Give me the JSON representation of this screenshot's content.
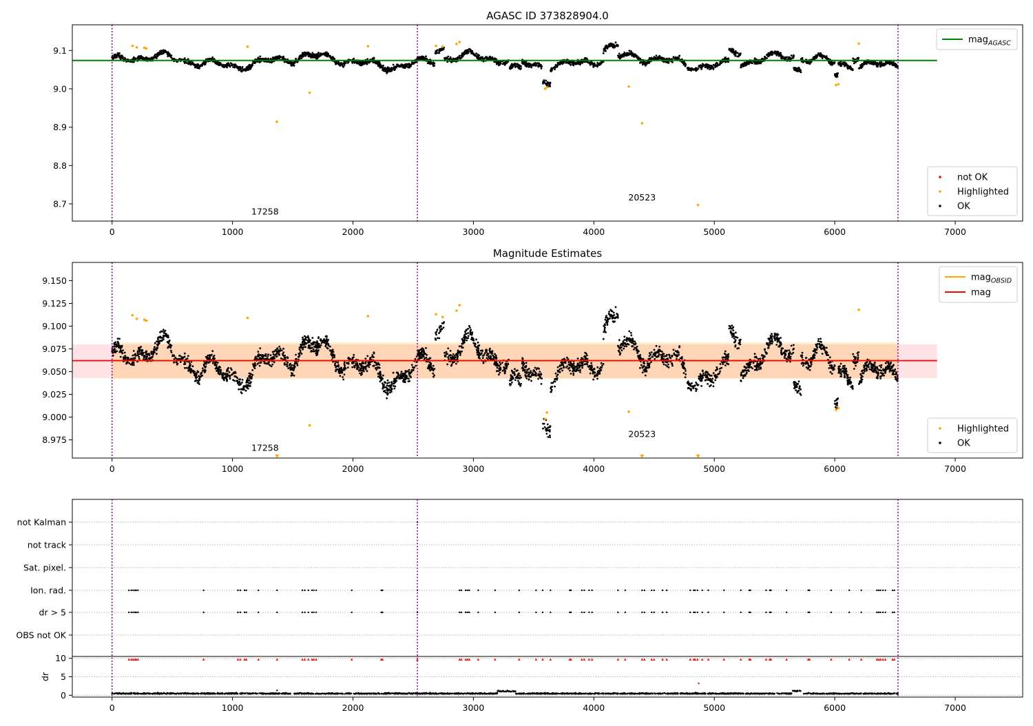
{
  "chart_data": [
    {
      "type": "scatter",
      "title": "AGASC ID 373828904.0",
      "x_ticks": [
        "0",
        "1000",
        "2000",
        "3000",
        "4000",
        "5000",
        "6000",
        "7000"
      ],
      "y_ticks": [
        "8.7",
        "8.8",
        "8.9",
        "9.0",
        "9.1"
      ],
      "xlim": [
        -330,
        7560
      ],
      "ylim": [
        8.655,
        9.167
      ],
      "mag_agasc": 9.074,
      "obsid_boundaries": [
        0,
        2535,
        6525
      ],
      "obsid_labels": [
        {
          "x": 1270,
          "y": 8.672,
          "text": "17258"
        },
        {
          "x": 4400,
          "y": 8.709,
          "text": "20523"
        }
      ],
      "line_legend": [
        {
          "name": "mag",
          "sub": "AGASC",
          "color": "#008000"
        }
      ],
      "point_legend": [
        {
          "name": "not OK",
          "color": "#ff0000"
        },
        {
          "name": "Highlighted",
          "color": "#ffa500"
        },
        {
          "name": "OK",
          "color": "#000000"
        }
      ],
      "highlighted_points": [
        [
          170,
          9.112
        ],
        [
          205,
          9.108
        ],
        [
          268,
          9.107
        ],
        [
          285,
          9.105
        ],
        [
          1125,
          9.11
        ],
        [
          1368,
          8.914
        ],
        [
          1640,
          8.99
        ],
        [
          2125,
          9.111
        ],
        [
          2690,
          9.112
        ],
        [
          2745,
          9.11
        ],
        [
          2860,
          9.117
        ],
        [
          2885,
          9.122
        ],
        [
          3595,
          9.0
        ],
        [
          3610,
          9.004
        ],
        [
          4290,
          9.006
        ],
        [
          4400,
          8.91
        ],
        [
          4865,
          8.697
        ],
        [
          6010,
          9.01
        ],
        [
          6030,
          9.012
        ],
        [
          6200,
          9.118
        ]
      ]
    },
    {
      "type": "scatter",
      "title": "Magnitude Estimates",
      "x_ticks": [
        "0",
        "1000",
        "2000",
        "3000",
        "4000",
        "5000",
        "6000",
        "7000"
      ],
      "y_ticks": [
        "8.975",
        "9.000",
        "9.025",
        "9.050",
        "9.075",
        "9.100",
        "9.125",
        "9.150"
      ],
      "xlim": [
        -330,
        7560
      ],
      "ylim": [
        8.955,
        9.17
      ],
      "mag": 9.062,
      "mag_band": [
        9.043,
        9.08
      ],
      "obsid_mag": [
        {
          "x0": 0,
          "x1": 2535,
          "mag": 9.062,
          "band": [
            9.042,
            9.082
          ]
        },
        {
          "x0": 2535,
          "x1": 6525,
          "mag": 9.062,
          "band": [
            9.042,
            9.082
          ]
        }
      ],
      "obsid_boundaries": [
        0,
        2535,
        6525
      ],
      "obsid_labels": [
        {
          "x": 1270,
          "y": 8.963,
          "text": "17258"
        },
        {
          "x": 4400,
          "y": 8.978,
          "text": "20523"
        }
      ],
      "line_legend": [
        {
          "name": "mag",
          "sub": "OBSID",
          "color": "#ffa500"
        },
        {
          "name": "mag",
          "sub": "",
          "color": "#ff0000"
        }
      ],
      "point_legend": [
        {
          "name": "Highlighted",
          "color": "#ffa500"
        },
        {
          "name": "OK",
          "color": "#000000"
        }
      ],
      "highlighted_points": [
        [
          170,
          9.112
        ],
        [
          205,
          9.108
        ],
        [
          268,
          9.107
        ],
        [
          285,
          9.106
        ],
        [
          1125,
          9.109
        ],
        [
          1640,
          8.991
        ],
        [
          2125,
          9.111
        ],
        [
          2690,
          9.113
        ],
        [
          2745,
          9.11
        ],
        [
          2860,
          9.117
        ],
        [
          2885,
          9.123
        ],
        [
          3595,
          8.998
        ],
        [
          3610,
          9.005
        ],
        [
          4290,
          9.006
        ],
        [
          6010,
          9.008
        ],
        [
          6030,
          9.01
        ],
        [
          6200,
          9.118
        ]
      ],
      "clipped_markers": [
        1370,
        4400,
        4865
      ]
    },
    {
      "type": "scatter",
      "title": "",
      "flag_categories": [
        "not Kalman",
        "not track",
        "Sat. pixel.",
        "Ion. rad.",
        "dr > 5",
        "OBS not OK"
      ],
      "xlim": [
        -330,
        7560
      ],
      "flag_x": [
        140,
        160,
        175,
        190,
        200,
        215,
        760,
        1045,
        1065,
        1100,
        1115,
        1215,
        1370,
        1580,
        1600,
        1630,
        1660,
        1675,
        1695,
        1990,
        2235,
        2245,
        2535,
        2885,
        2900,
        2935,
        2950,
        2965,
        3040,
        3180,
        3380,
        3520,
        3575,
        3640,
        3800,
        3810,
        3900,
        3920,
        3960,
        3985,
        4200,
        4260,
        4400,
        4420,
        4480,
        4500,
        4570,
        4605,
        4800,
        4830,
        4840,
        4860,
        4900,
        4950,
        5080,
        5220,
        5290,
        5300,
        5430,
        5460,
        5470,
        5600,
        5780,
        5790,
        5970,
        6120,
        6220,
        6350,
        6365,
        6380,
        6400,
        6420,
        6480,
        6495
      ],
      "dr_x_ticks": [
        "0",
        "1000",
        "2000",
        "3000",
        "4000",
        "5000",
        "6000",
        "7000"
      ],
      "dr_y_ticks": [
        "0",
        "5",
        "10"
      ],
      "dr_ylim": [
        -0.5,
        10.5
      ],
      "dr_label": "dr",
      "dr_outlier": [
        4870,
        3.2
      ],
      "dr_marker_level": 9.7
    }
  ]
}
